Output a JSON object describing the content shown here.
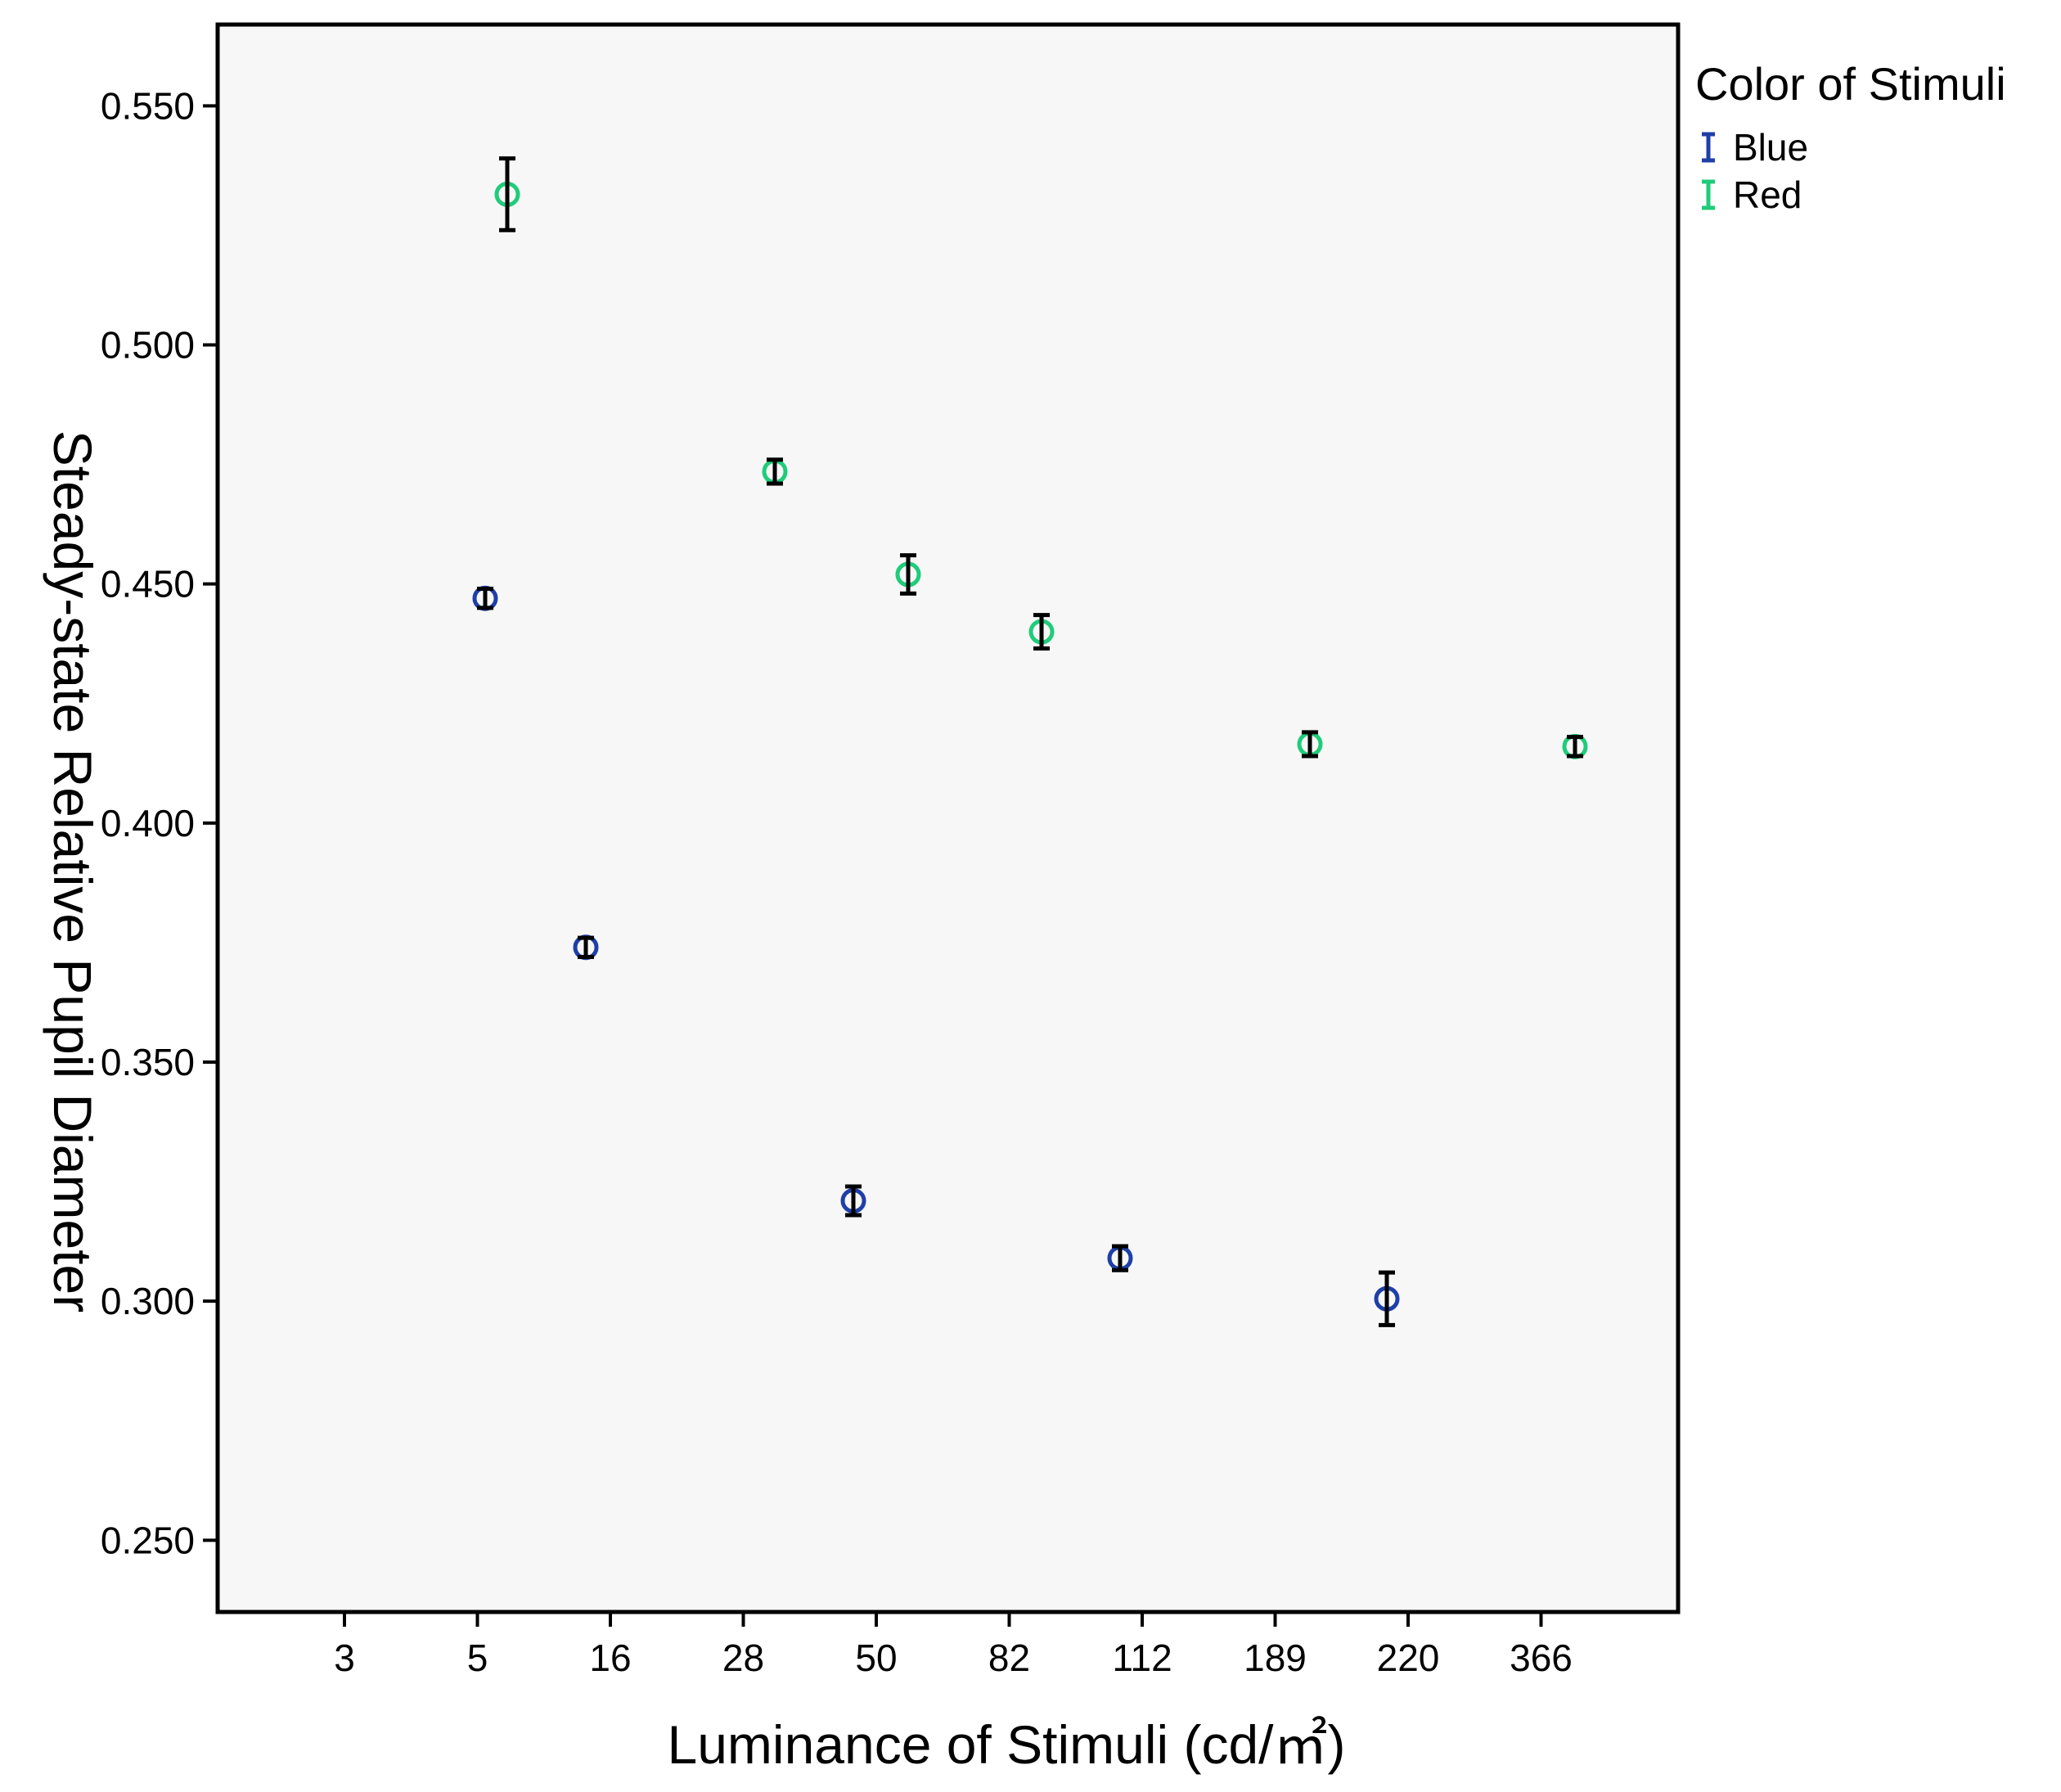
{
  "chart_data": {
    "type": "scatter",
    "xlabel": "Luminance of Stimuli (cd/㎡)",
    "ylabel": "Steady-state Relative Pupil Diameter",
    "ylim": [
      0.235,
      0.567
    ],
    "y_ticks": [
      "0.250",
      "0.300",
      "0.350",
      "0.400",
      "0.450",
      "0.500",
      "0.550"
    ],
    "x_categories": [
      "3",
      "5",
      "16",
      "28",
      "50",
      "82",
      "112",
      "189",
      "220",
      "366"
    ],
    "grid": false,
    "legend": {
      "title": "Color of Stimuli",
      "placement": "outside-right-top",
      "entries": [
        "Blue",
        "Red"
      ]
    },
    "colors": {
      "Blue": "#1f3fa8",
      "Red": "#1fcc7a",
      "error_bar": "#000000",
      "plot_bg": "#f7f7f7"
    },
    "series": [
      {
        "name": "Blue",
        "points": [
          {
            "x": "5",
            "y": 0.447,
            "err": 0.002
          },
          {
            "x": "16",
            "y": 0.374,
            "err": 0.002
          },
          {
            "x": "50",
            "y": 0.321,
            "err": 0.003
          },
          {
            "x": "112",
            "y": 0.309,
            "err": 0.0025
          },
          {
            "x": "220",
            "y": 0.3005,
            "err": 0.0055
          }
        ]
      },
      {
        "name": "Red",
        "points": [
          {
            "x": "5",
            "y": 0.5315,
            "err": 0.0075
          },
          {
            "x": "28",
            "y": 0.4735,
            "err": 0.0025
          },
          {
            "x": "50",
            "y": 0.452,
            "err": 0.004
          },
          {
            "x": "82",
            "y": 0.44,
            "err": 0.0035
          },
          {
            "x": "189",
            "y": 0.4165,
            "err": 0.0025
          },
          {
            "x": "366",
            "y": 0.416,
            "err": 0.002
          }
        ]
      }
    ]
  }
}
